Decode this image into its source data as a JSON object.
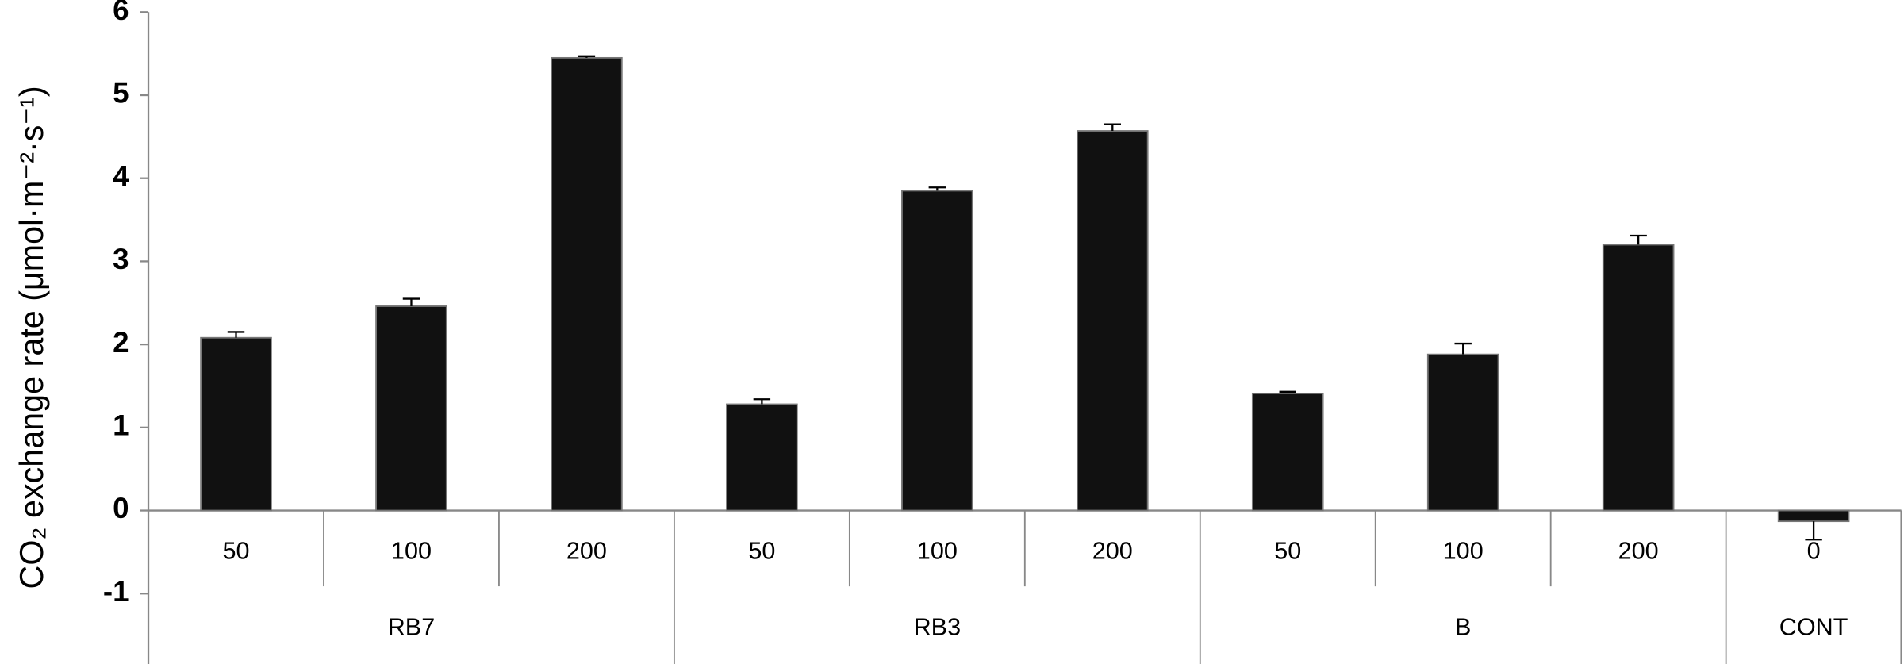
{
  "chart_data": {
    "type": "bar",
    "y_label": "CO₂ exchange rate (μmol·m⁻²·s⁻¹)",
    "groups": [
      {
        "name": "RB7",
        "categories": [
          "50",
          "100",
          "200"
        ]
      },
      {
        "name": "RB3",
        "categories": [
          "50",
          "100",
          "200"
        ]
      },
      {
        "name": "B",
        "categories": [
          "50",
          "100",
          "200"
        ]
      },
      {
        "name": "CONT",
        "categories": [
          "0"
        ]
      }
    ],
    "values": [
      2.08,
      2.46,
      5.45,
      1.28,
      3.85,
      4.57,
      1.41,
      1.88,
      3.2,
      -0.13
    ],
    "errors": [
      0.07,
      0.09,
      0.02,
      0.06,
      0.04,
      0.08,
      0.02,
      0.13,
      0.11,
      0.22
    ],
    "color": "#111111",
    "ylim": [
      -1,
      6
    ],
    "yticks": [
      6,
      5,
      4,
      3,
      2,
      1,
      0,
      -1
    ],
    "grid": false
  }
}
